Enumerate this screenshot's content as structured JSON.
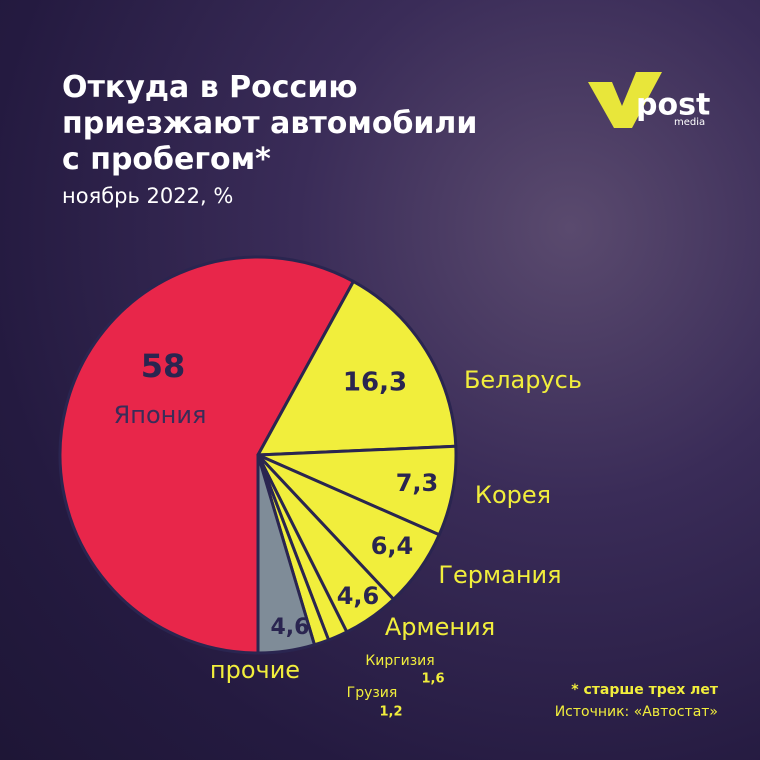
{
  "chart_data": {
    "type": "pie",
    "title": "Откуда в Россию приезжают автомобили с пробегом*",
    "subtitle": "ноябрь 2022, %",
    "categories": [
      "Япония",
      "Беларусь",
      "Корея",
      "Германия",
      "Армения",
      "Киргизия",
      "Грузия",
      "прочие"
    ],
    "values": [
      58,
      16.3,
      7.3,
      6.4,
      4.6,
      1.6,
      1.2,
      4.6
    ],
    "value_labels": [
      "58",
      "16,3",
      "7,3",
      "6,4",
      "4,6",
      "1,6",
      "1,2",
      "4,6"
    ],
    "colors": [
      "#e8264a",
      "#f1ee3c",
      "#f1ee3c",
      "#f1ee3c",
      "#f1ee3c",
      "#f1ee3c",
      "#f1ee3c",
      "#7f8c98"
    ],
    "footnote": "* старше трех лет",
    "source": "Источник: «Автостат»"
  },
  "logo": {
    "name": "post",
    "sub": "media"
  }
}
